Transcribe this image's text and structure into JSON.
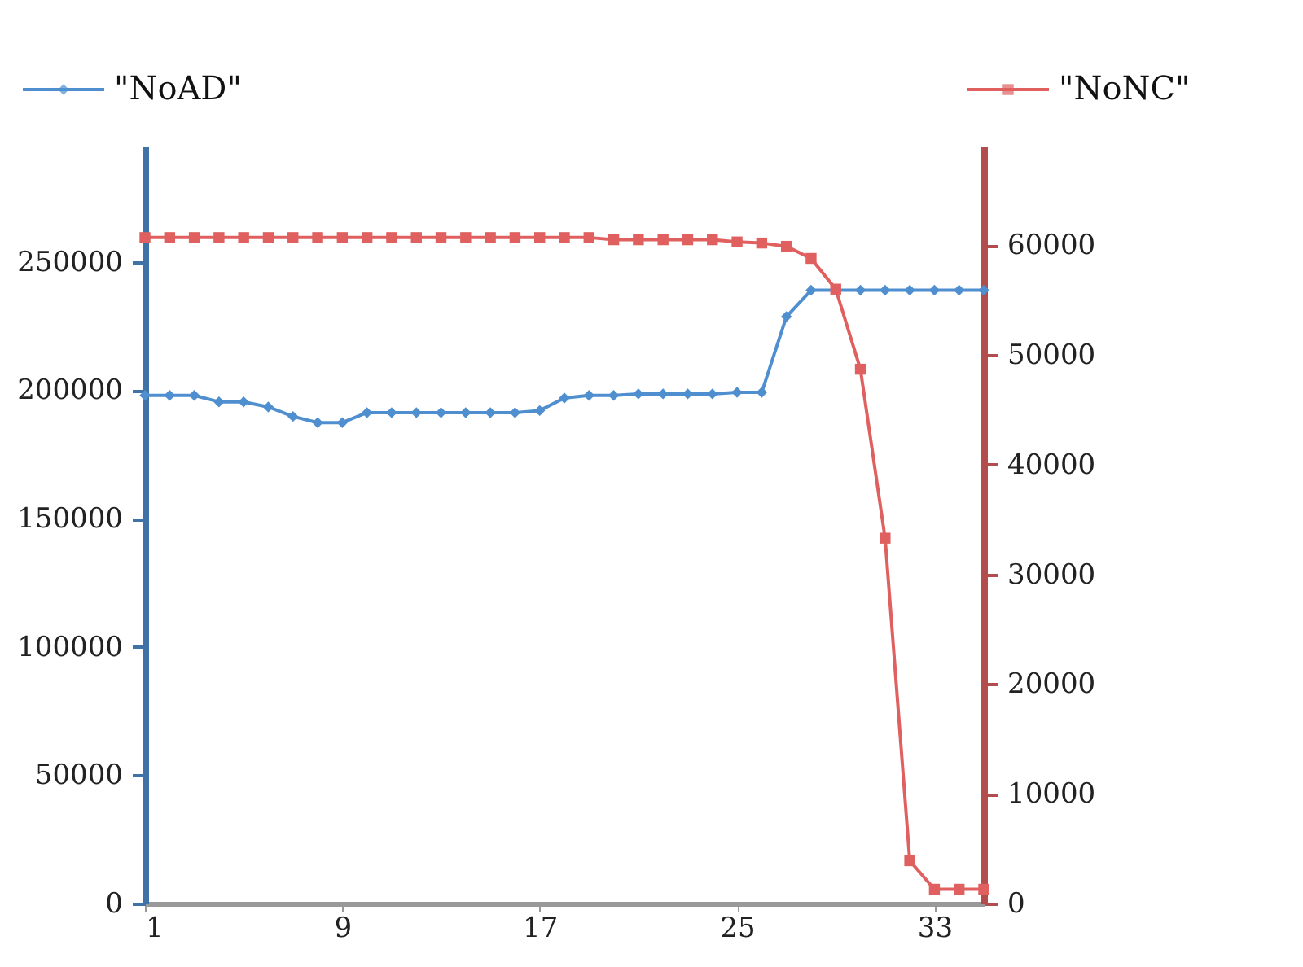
{
  "chart_data": {
    "type": "line",
    "x": [
      1,
      2,
      3,
      4,
      5,
      6,
      7,
      8,
      9,
      10,
      11,
      12,
      13,
      14,
      15,
      16,
      17,
      18,
      19,
      20,
      21,
      22,
      23,
      24,
      25,
      26,
      27,
      28,
      29,
      30,
      31,
      32,
      33,
      34,
      35
    ],
    "series": [
      {
        "name": "\"NoAD\"",
        "color": "#4f8fd0",
        "marker": "diamond",
        "values": [
          198000,
          198000,
          198000,
          195500,
          195500,
          193500,
          189800,
          187400,
          187400,
          191300,
          191300,
          191300,
          191300,
          191300,
          191300,
          191300,
          192100,
          197000,
          198000,
          198000,
          198600,
          198600,
          198600,
          198600,
          199200,
          199200,
          228700,
          239000,
          239000,
          239000,
          239000,
          239000,
          239000,
          239000,
          239000
        ]
      },
      {
        "name": "\"NoNC\"",
        "color": "#e06060",
        "marker": "square",
        "axis": "y2",
        "values": [
          60700,
          60700,
          60700,
          60700,
          60700,
          60700,
          60700,
          60700,
          60700,
          60700,
          60700,
          60700,
          60700,
          60700,
          60700,
          60700,
          60700,
          60700,
          60700,
          60500,
          60500,
          60500,
          60500,
          60500,
          60300,
          60200,
          59900,
          58800,
          56000,
          48700,
          33300,
          3900,
          1300,
          1300,
          1300
        ]
      }
    ],
    "xlim": [
      1,
      35
    ],
    "xticks": [
      1,
      9,
      17,
      25,
      33
    ],
    "ylim": [
      0,
      295000
    ],
    "yticks": [
      0,
      50000,
      100000,
      150000,
      200000,
      250000
    ],
    "y2lim": [
      0,
      69000
    ],
    "y2ticks": [
      0,
      10000,
      20000,
      30000,
      40000,
      50000,
      60000
    ],
    "grid": false,
    "legend": "top",
    "line_style": "solid"
  }
}
